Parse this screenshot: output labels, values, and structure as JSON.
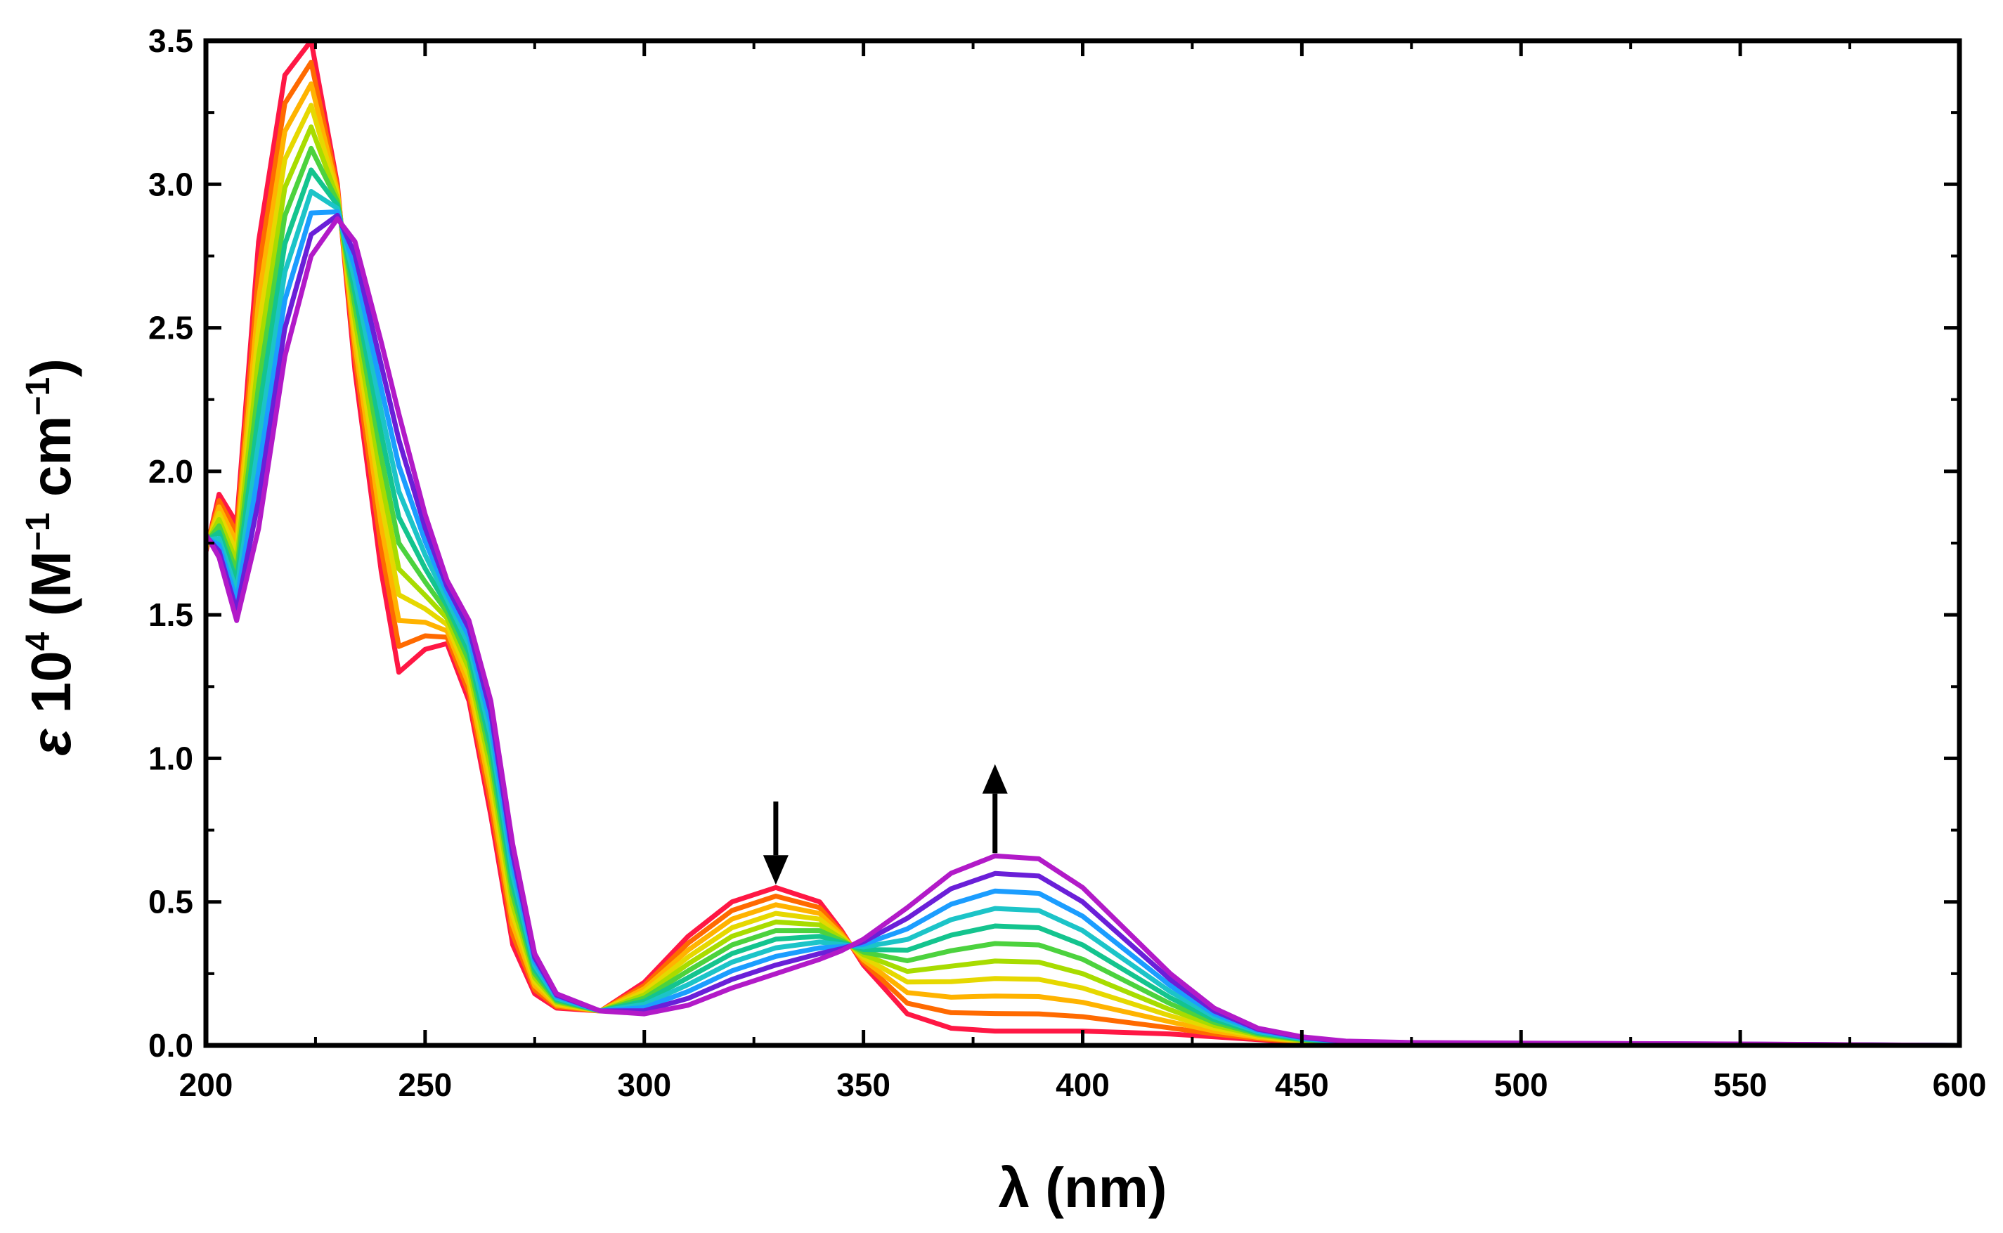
{
  "chart_data": {
    "type": "line",
    "title": "",
    "xlabel": "λ (nm)",
    "ylabel": {
      "symbol": "ε",
      "base": " 10",
      "base_exp": "4",
      "unit_open": " (M",
      "unit_exp1": "−1",
      "unit_mid": " cm",
      "unit_exp2": "−1",
      "unit_close": ")"
    },
    "xlim": [
      200,
      600
    ],
    "ylim": [
      0,
      3.5
    ],
    "xticks": [
      200,
      250,
      300,
      350,
      400,
      450,
      500,
      550,
      600
    ],
    "xtick_labels": [
      "200",
      "250",
      "300",
      "350",
      "400",
      "450",
      "500",
      "550",
      "600"
    ],
    "yticks": [
      0,
      0.5,
      1.0,
      1.5,
      2.0,
      2.5,
      3.0,
      3.5
    ],
    "ytick_labels": [
      "0.0",
      "0.5",
      "1.0",
      "1.5",
      "2.0",
      "2.5",
      "3.0",
      "3.5"
    ],
    "grid": false,
    "legend": "none",
    "series_count": 11,
    "series_colors": [
      "#ff1744",
      "#ff6a00",
      "#ffb300",
      "#e6d800",
      "#a8dc00",
      "#4cd23e",
      "#14c48e",
      "#1cc4c8",
      "#1b9dff",
      "#6a1fd8",
      "#b21ac8"
    ],
    "x": [
      200,
      203,
      207,
      212,
      218,
      224,
      230,
      234,
      240,
      244,
      250,
      255,
      260,
      265,
      270,
      275,
      280,
      290,
      300,
      310,
      320,
      330,
      340,
      345,
      350,
      360,
      370,
      380,
      390,
      400,
      410,
      420,
      430,
      440,
      450,
      460,
      475,
      500,
      550,
      600
    ],
    "endpoints": [
      {
        "name": "initial (red)",
        "values": [
          1.72,
          1.92,
          1.82,
          2.8,
          3.38,
          3.5,
          3.0,
          2.35,
          1.65,
          1.3,
          1.38,
          1.4,
          1.2,
          0.8,
          0.35,
          0.18,
          0.13,
          0.12,
          0.22,
          0.38,
          0.5,
          0.55,
          0.5,
          0.4,
          0.28,
          0.11,
          0.06,
          0.05,
          0.05,
          0.05,
          0.045,
          0.04,
          0.03,
          0.02,
          0.01,
          0.005,
          0.003,
          0.002,
          0.001,
          0.0
        ]
      },
      {
        "name": "final (magenta)",
        "values": [
          1.78,
          1.7,
          1.48,
          1.8,
          2.4,
          2.75,
          2.88,
          2.8,
          2.45,
          2.2,
          1.85,
          1.62,
          1.48,
          1.2,
          0.7,
          0.32,
          0.18,
          0.12,
          0.11,
          0.14,
          0.2,
          0.25,
          0.3,
          0.33,
          0.37,
          0.48,
          0.6,
          0.66,
          0.65,
          0.55,
          0.4,
          0.25,
          0.13,
          0.06,
          0.03,
          0.015,
          0.01,
          0.008,
          0.005,
          0.0
        ]
      }
    ],
    "annotations": [
      {
        "type": "arrow",
        "direction": "down",
        "x": 330,
        "y_from": 0.85,
        "y_to": 0.56
      },
      {
        "type": "arrow",
        "direction": "up",
        "x": 380,
        "y_from": 0.67,
        "y_to": 0.98
      }
    ]
  }
}
